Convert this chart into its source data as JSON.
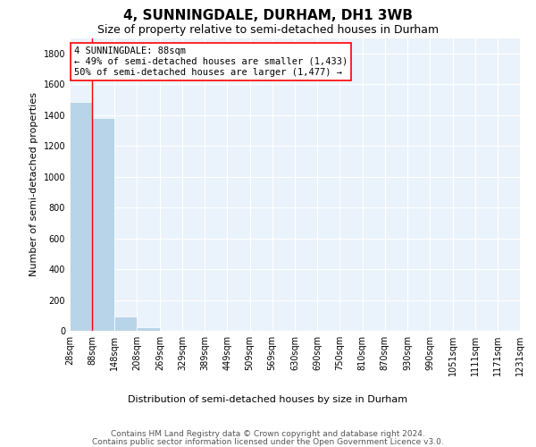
{
  "title": "4, SUNNINGDALE, DURHAM, DH1 3WB",
  "subtitle": "Size of property relative to semi-detached houses in Durham",
  "xlabel": "Distribution of semi-detached houses by size in Durham",
  "ylabel": "Number of semi-detached properties",
  "bar_left_edges": [
    28,
    88,
    148,
    208,
    269,
    329,
    389,
    449,
    509,
    569,
    630,
    690,
    750,
    810,
    870,
    930,
    990,
    1051,
    1111,
    1171
  ],
  "bar_widths": [
    60,
    60,
    60,
    61,
    60,
    60,
    60,
    60,
    60,
    61,
    60,
    60,
    60,
    60,
    60,
    60,
    61,
    60,
    60,
    60
  ],
  "bar_heights": [
    1488,
    1380,
    95,
    25,
    0,
    0,
    0,
    0,
    0,
    0,
    0,
    0,
    0,
    0,
    0,
    0,
    0,
    0,
    0,
    0
  ],
  "bar_color": "#b8d4e8",
  "tick_labels": [
    "28sqm",
    "88sqm",
    "148sqm",
    "208sqm",
    "269sqm",
    "329sqm",
    "389sqm",
    "449sqm",
    "509sqm",
    "569sqm",
    "630sqm",
    "690sqm",
    "750sqm",
    "810sqm",
    "870sqm",
    "930sqm",
    "990sqm",
    "1051sqm",
    "1111sqm",
    "1171sqm",
    "1231sqm"
  ],
  "red_line_x": 88,
  "annotation_line1": "4 SUNNINGDALE: 88sqm",
  "annotation_line2": "← 49% of semi-detached houses are smaller (1,433)",
  "annotation_line3": "50% of semi-detached houses are larger (1,477) →",
  "annotation_box_color": "white",
  "annotation_box_edgecolor": "red",
  "ylim": [
    0,
    1900
  ],
  "yticks": [
    0,
    200,
    400,
    600,
    800,
    1000,
    1200,
    1400,
    1600,
    1800
  ],
  "background_color": "#eaf3fb",
  "grid_color": "white",
  "footer_line1": "Contains HM Land Registry data © Crown copyright and database right 2024.",
  "footer_line2": "Contains public sector information licensed under the Open Government Licence v3.0.",
  "title_fontsize": 11,
  "subtitle_fontsize": 9,
  "axis_label_fontsize": 8,
  "tick_fontsize": 7,
  "annotation_fontsize": 7.5,
  "footer_fontsize": 6.5
}
